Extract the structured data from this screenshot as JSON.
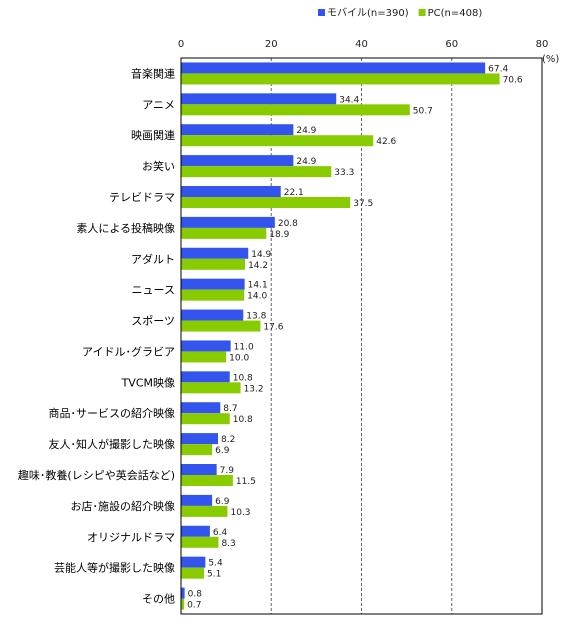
{
  "chart_data": {
    "type": "bar",
    "orientation": "horizontal",
    "categories": [
      "音楽関連",
      "アニメ",
      "映画関連",
      "お笑い",
      "テレビドラマ",
      "素人による投稿映像",
      "アダルト",
      "ニュース",
      "スポーツ",
      "アイドル･グラビア",
      "TVCM映像",
      "商品･サービスの紹介映像",
      "友人･知人が撮影した映像",
      "趣味･教養(レシピや英会話など)",
      "お店･施設の紹介映像",
      "オリジナルドラマ",
      "芸能人等が撮影した映像",
      "その他"
    ],
    "series": [
      {
        "name": "モバイル(n=390)",
        "color": "#3355ee",
        "values": [
          67.4,
          34.4,
          24.9,
          24.9,
          22.1,
          20.8,
          14.9,
          14.1,
          13.8,
          11.0,
          10.8,
          8.7,
          8.2,
          7.9,
          6.9,
          6.4,
          5.4,
          0.8
        ],
        "labels": [
          "67.4",
          "34.4",
          "24.9",
          "24.9",
          "22.1",
          "20.8",
          "14.9",
          "14.1",
          "13.8",
          "11.0",
          "10.8",
          "8.7",
          "8.2",
          "7.9",
          "6.9",
          "6.4",
          "5.4",
          "0.8"
        ]
      },
      {
        "name": "PC(n=408)",
        "color": "#88cc00",
        "values": [
          70.6,
          50.7,
          42.6,
          33.3,
          37.5,
          18.9,
          14.2,
          14.0,
          17.6,
          10.0,
          13.2,
          10.8,
          6.9,
          11.5,
          10.3,
          8.3,
          5.1,
          0.7
        ],
        "labels": [
          "70.6",
          "50.7",
          "42.6",
          "33.3",
          "37.5",
          "18.9",
          "14.2",
          "14.0",
          "17.6",
          "10.0",
          "13.2",
          "10.8",
          "6.9",
          "11.5",
          "10.3",
          "8.3",
          "5.1",
          "0.7"
        ]
      }
    ],
    "xlim": [
      0,
      80
    ],
    "xticks": [
      "0",
      "20",
      "40",
      "60",
      "80"
    ],
    "unit": "(%)",
    "grid": "dashed-vertical",
    "legend_position": "top-right"
  }
}
